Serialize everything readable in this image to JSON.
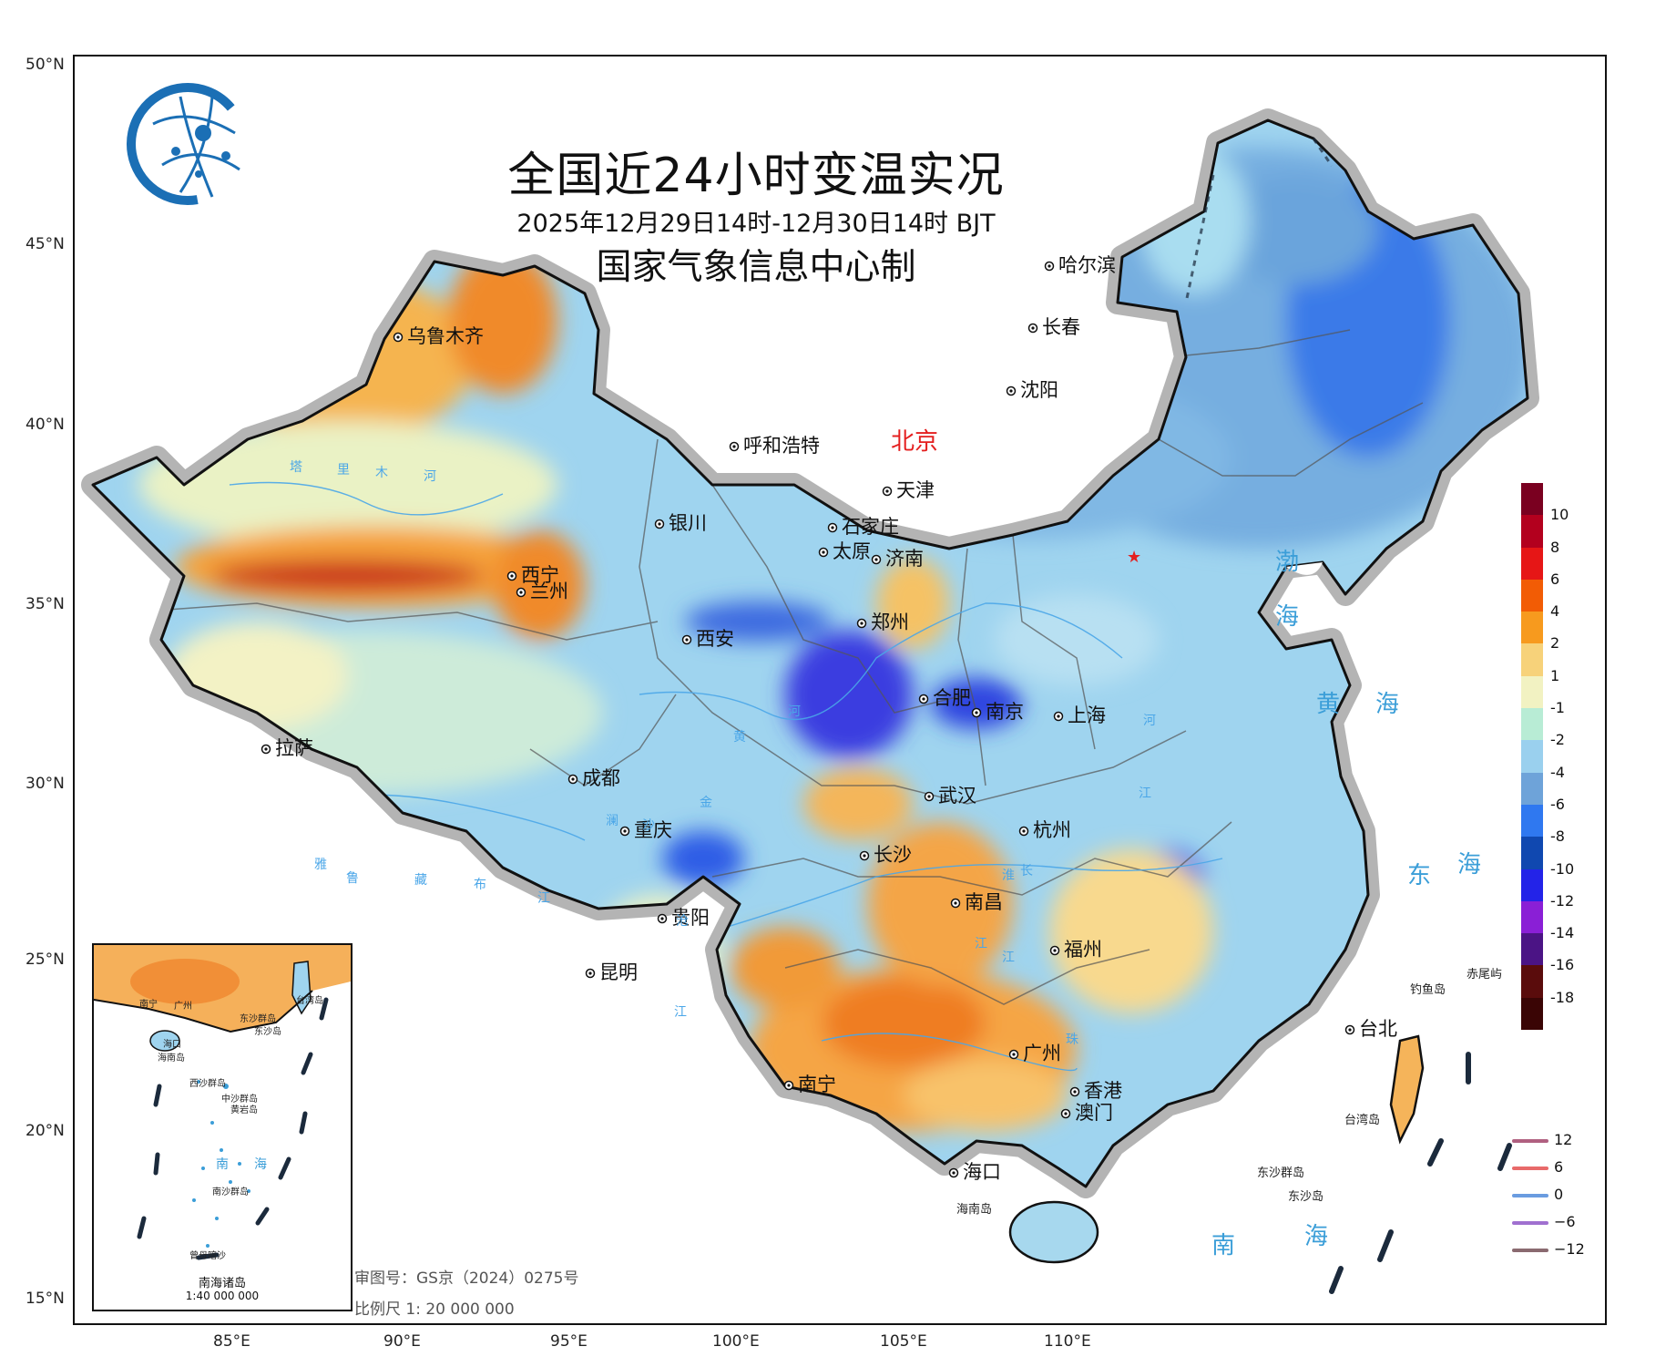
{
  "map": {
    "title": "全国近24小时变温实况",
    "time_range": "2025年12月29日14时-12月30日14时 BJT",
    "producer": "国家气象信息中心制",
    "lat_ticks": [
      "50°N",
      "45°N",
      "40°N",
      "35°N",
      "30°N",
      "25°N",
      "20°N",
      "15°N"
    ],
    "lon_ticks": [
      "85°E",
      "90°E",
      "95°E",
      "100°E",
      "105°E",
      "110°E"
    ],
    "cities": [
      {
        "name": "乌鲁木齐"
      },
      {
        "name": "哈尔滨"
      },
      {
        "name": "长春"
      },
      {
        "name": "沈阳"
      },
      {
        "name": "呼和浩特"
      },
      {
        "name": "北京"
      },
      {
        "name": "天津"
      },
      {
        "name": "石家庄"
      },
      {
        "name": "银川"
      },
      {
        "name": "太原"
      },
      {
        "name": "济南"
      },
      {
        "name": "西宁"
      },
      {
        "name": "兰州"
      },
      {
        "name": "西安"
      },
      {
        "name": "郑州"
      },
      {
        "name": "合肥"
      },
      {
        "name": "南京"
      },
      {
        "name": "上海"
      },
      {
        "name": "拉萨"
      },
      {
        "name": "成都"
      },
      {
        "name": "武汉"
      },
      {
        "name": "杭州"
      },
      {
        "name": "重庆"
      },
      {
        "name": "长沙"
      },
      {
        "name": "南昌"
      },
      {
        "name": "贵阳"
      },
      {
        "name": "福州"
      },
      {
        "name": "台北"
      },
      {
        "name": "昆明"
      },
      {
        "name": "广州"
      },
      {
        "name": "南宁"
      },
      {
        "name": "香港"
      },
      {
        "name": "澳门"
      },
      {
        "name": "海口"
      }
    ],
    "water_labels": [
      "渤",
      "海",
      "黄",
      "海",
      "东",
      "海",
      "南",
      "海"
    ],
    "river_labels": [
      "塔",
      "里",
      "木",
      "河",
      "黄",
      "河",
      "雅",
      "鲁",
      "藏",
      "布",
      "江",
      "金",
      "沙",
      "江",
      "澜",
      "沧",
      "江",
      "淮",
      "长",
      "江",
      "珠",
      "江",
      "河"
    ],
    "islands": [
      "赤尾屿",
      "钓鱼岛",
      "台湾岛",
      "东沙群岛",
      "东沙岛",
      "海南岛"
    ],
    "review_no": "审图号：GS京（2024）0275号",
    "scale": "比例尺 1: 20 000 000",
    "inset": {
      "title": "南海诸岛",
      "scale": "1:40 000 000",
      "labels": [
        "南宁",
        "广州",
        "台湾岛",
        "东沙群岛",
        "东沙岛",
        "海口",
        "海南岛",
        "西沙群岛",
        "中沙群岛",
        "黄岩岛",
        "南",
        "海",
        "南沙群岛",
        "曾母暗沙"
      ]
    },
    "legend_colorbar": {
      "values": [
        "10",
        "8",
        "6",
        "4",
        "2",
        "1",
        "-1",
        "-2",
        "-4",
        "-6",
        "-8",
        "-10",
        "-12",
        "-14",
        "-16",
        "-18"
      ],
      "colors": [
        "#7a0020",
        "#b3001e",
        "#e61616",
        "#f25c05",
        "#f79a1e",
        "#f7d27a",
        "#f2f2c2",
        "#b8ecd5",
        "#9ad0ee",
        "#6ea3d9",
        "#2f78f0",
        "#1048b0",
        "#2323e8",
        "#8a1fd6",
        "#4b1485",
        "#5a0c0c",
        "#3a0505"
      ]
    },
    "legend_lines": [
      {
        "value": "12",
        "color": "#b06080"
      },
      {
        "value": "6",
        "color": "#e86a6a"
      },
      {
        "value": "0",
        "color": "#6a9ce0"
      },
      {
        "value": "−6",
        "color": "#a070d0"
      },
      {
        "value": "−12",
        "color": "#8a6a70"
      }
    ]
  }
}
